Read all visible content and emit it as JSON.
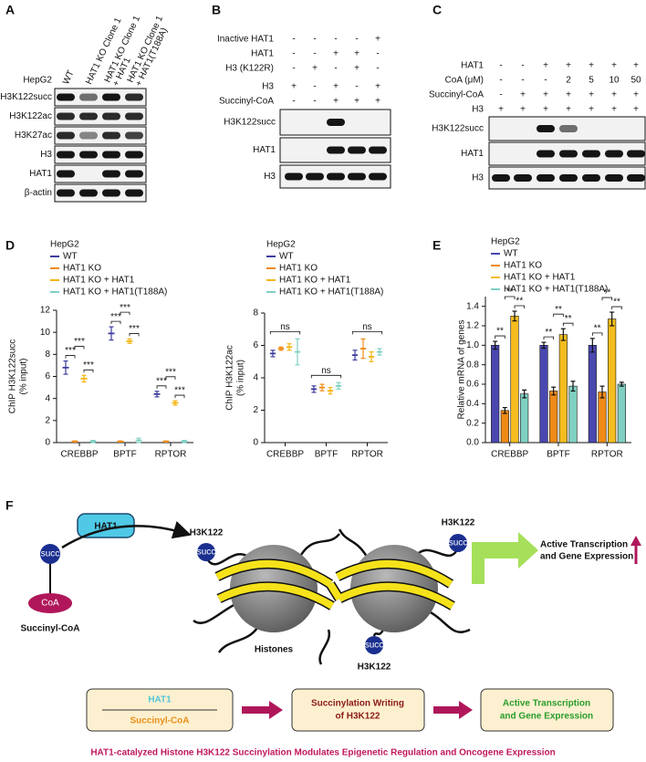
{
  "panel_labels": [
    "A",
    "B",
    "C",
    "D",
    "E",
    "F"
  ],
  "blot_a": {
    "cell_line": "HepG2",
    "lanes": [
      [
        "WT"
      ],
      [
        "HAT1 KO Clone 1"
      ],
      [
        "HAT1 KO Clone 1",
        "+ HAT1"
      ],
      [
        "HAT1 KO Clone 1",
        "+ HAT1(T188A)"
      ]
    ],
    "blots": [
      "H3K122succ",
      "H3K122ac",
      "H3K27ac",
      "H3",
      "HAT1",
      "β-actin"
    ]
  },
  "blot_b": {
    "conditions": [
      {
        "label": "Inactive HAT1",
        "values": [
          "-",
          "-",
          "-",
          "-",
          "+"
        ]
      },
      {
        "label": "HAT1",
        "values": [
          "-",
          "-",
          "+",
          "+",
          "-"
        ]
      },
      {
        "label": "H3 (K122R)",
        "values": [
          "-",
          "+",
          "-",
          "+",
          "-"
        ]
      },
      {
        "label": "H3",
        "values": [
          "+",
          "-",
          "+",
          "-",
          "+"
        ]
      },
      {
        "label": "Succinyl-CoA",
        "values": [
          "-",
          "-",
          "+",
          "+",
          "+"
        ]
      }
    ],
    "blots": [
      "H3K122succ",
      "HAT1",
      "H3"
    ]
  },
  "blot_c": {
    "conditions": [
      {
        "label": "HAT1",
        "values": [
          "-",
          "-",
          "+",
          "+",
          "+",
          "+",
          "+"
        ]
      },
      {
        "label": "CoA (μM)",
        "values": [
          "-",
          "-",
          "-",
          2,
          5,
          10,
          50
        ]
      },
      {
        "label": "Succinyl-CoA",
        "values": [
          "-",
          "+",
          "+",
          "+",
          "+",
          "+",
          "+"
        ]
      },
      {
        "label": "H3",
        "values": [
          "+",
          "+",
          "+",
          "+",
          "+",
          "+",
          "+"
        ]
      }
    ],
    "blots": [
      "H3K122succ",
      "HAT1",
      "H3"
    ]
  },
  "chart_data": [
    {
      "type": "dotplot",
      "legend_title": "HepG2",
      "ylabel": [
        "ChIP H3K122succ",
        "(% input)"
      ],
      "categories": [
        "CREBBP",
        "BPTF",
        "RPTOR"
      ],
      "ylim": [
        0,
        12
      ],
      "yticks": [
        0,
        2,
        4,
        6,
        8,
        10,
        12
      ],
      "series": [
        {
          "name": "WT",
          "color": "#3d3d9e",
          "values": [
            6.8,
            9.9,
            4.4
          ],
          "errors": [
            0.6,
            0.6,
            0.25
          ]
        },
        {
          "name": "HAT1 KO",
          "color": "#ef8a17",
          "values": [
            0.1,
            0.1,
            0.1
          ],
          "errors": [
            0.05,
            0.05,
            0.05
          ]
        },
        {
          "name": "HAT1 KO  + HAT1",
          "color": "#f4b50f",
          "values": [
            5.8,
            9.2,
            3.6
          ],
          "errors": [
            0.3,
            0.2,
            0.2
          ]
        },
        {
          "name": "HAT1 KO  + HAT1(T188A)",
          "color": "#7fd0c2",
          "values": [
            0.1,
            0.2,
            0.1
          ],
          "errors": [
            0.1,
            0.2,
            0.1
          ]
        }
      ],
      "significance": [
        [
          "***",
          "***",
          "***"
        ],
        [
          "***",
          "***",
          "***"
        ],
        [
          "***",
          "***",
          "***"
        ]
      ]
    },
    {
      "type": "dotplot",
      "legend_title": "HepG2",
      "ylabel": [
        "ChIP H3K122ac",
        "(% input)"
      ],
      "categories": [
        "CREBBP",
        "BPTF",
        "RPTOR"
      ],
      "ylim": [
        0,
        8
      ],
      "yticks": [
        0,
        2,
        4,
        6,
        8
      ],
      "series": [
        {
          "name": "WT",
          "color": "#3d3d9e",
          "values": [
            5.5,
            3.3,
            5.4
          ],
          "errors": [
            0.2,
            0.2,
            0.3
          ]
        },
        {
          "name": "HAT1 KO",
          "color": "#ef8a17",
          "values": [
            5.8,
            3.4,
            5.8
          ],
          "errors": [
            0.1,
            0.2,
            0.6
          ]
        },
        {
          "name": "HAT1 KO  + HAT1",
          "color": "#f4b50f",
          "values": [
            5.9,
            3.2,
            5.3
          ],
          "errors": [
            0.2,
            0.2,
            0.3
          ]
        },
        {
          "name": "HAT1 KO  + HAT1(T188A)",
          "color": "#7fd0c2",
          "values": [
            5.6,
            3.5,
            5.6
          ],
          "errors": [
            0.8,
            0.2,
            0.2
          ]
        }
      ],
      "significance": [
        "ns",
        "ns",
        "ns"
      ]
    },
    {
      "type": "bar",
      "legend_title": "HepG2",
      "ylabel": [
        "Relative mRNA of genes"
      ],
      "categories": [
        "CREBBP",
        "BPTF",
        "RPTOR"
      ],
      "ylim": [
        0,
        1.5
      ],
      "yticks": [
        {
          "value": 0,
          "label": "0.0"
        },
        0.2,
        0.4,
        0.6,
        0.8,
        {
          "value": 1,
          "label": "1.0"
        },
        1.2,
        1.4
      ],
      "series": [
        {
          "name": "WT",
          "color": "#4a48b0",
          "values": [
            1.0,
            1.0,
            1.0
          ],
          "errors": [
            0.04,
            0.03,
            0.07
          ]
        },
        {
          "name": "HAT1 KO",
          "color": "#ef8a17",
          "values": [
            0.33,
            0.53,
            0.52
          ],
          "errors": [
            0.03,
            0.04,
            0.06
          ]
        },
        {
          "name": "HAT1 KO  + HAT1",
          "color": "#f5bd1f",
          "values": [
            1.3,
            1.11,
            1.27
          ],
          "errors": [
            0.05,
            0.06,
            0.07
          ]
        },
        {
          "name": "HAT1 KO  + HAT1(T188A)",
          "color": "#7fd0c2",
          "values": [
            0.5,
            0.58,
            0.6
          ],
          "errors": [
            0.04,
            0.05,
            0.02
          ]
        }
      ],
      "significance": [
        [
          "**",
          "**",
          "**"
        ],
        [
          "**",
          "**",
          "**"
        ],
        [
          "**",
          "**",
          "**"
        ]
      ]
    }
  ],
  "diagram": {
    "enzyme": "HAT1",
    "succ_labels": [
      "succ",
      "succ",
      "succ",
      "succ"
    ],
    "coa": "CoA",
    "donor": "Succinyl-CoA",
    "site_labels": [
      "H3K122",
      "H3K122",
      "H3K122"
    ],
    "histones": "Histones",
    "outcome": [
      "Active Transcription",
      "and Gene Expression"
    ],
    "flow": {
      "inputs": [
        "HAT1",
        "Succinyl-CoA"
      ],
      "step": [
        "Succinylation Writing",
        "of H3K122"
      ],
      "result": [
        "Active Transcription",
        "and Gene Expression"
      ]
    },
    "caption": "HAT1-catalyzed Histone H3K122 Succinylation Modulates Epigenetic Regulation and Oncogene Expression"
  }
}
